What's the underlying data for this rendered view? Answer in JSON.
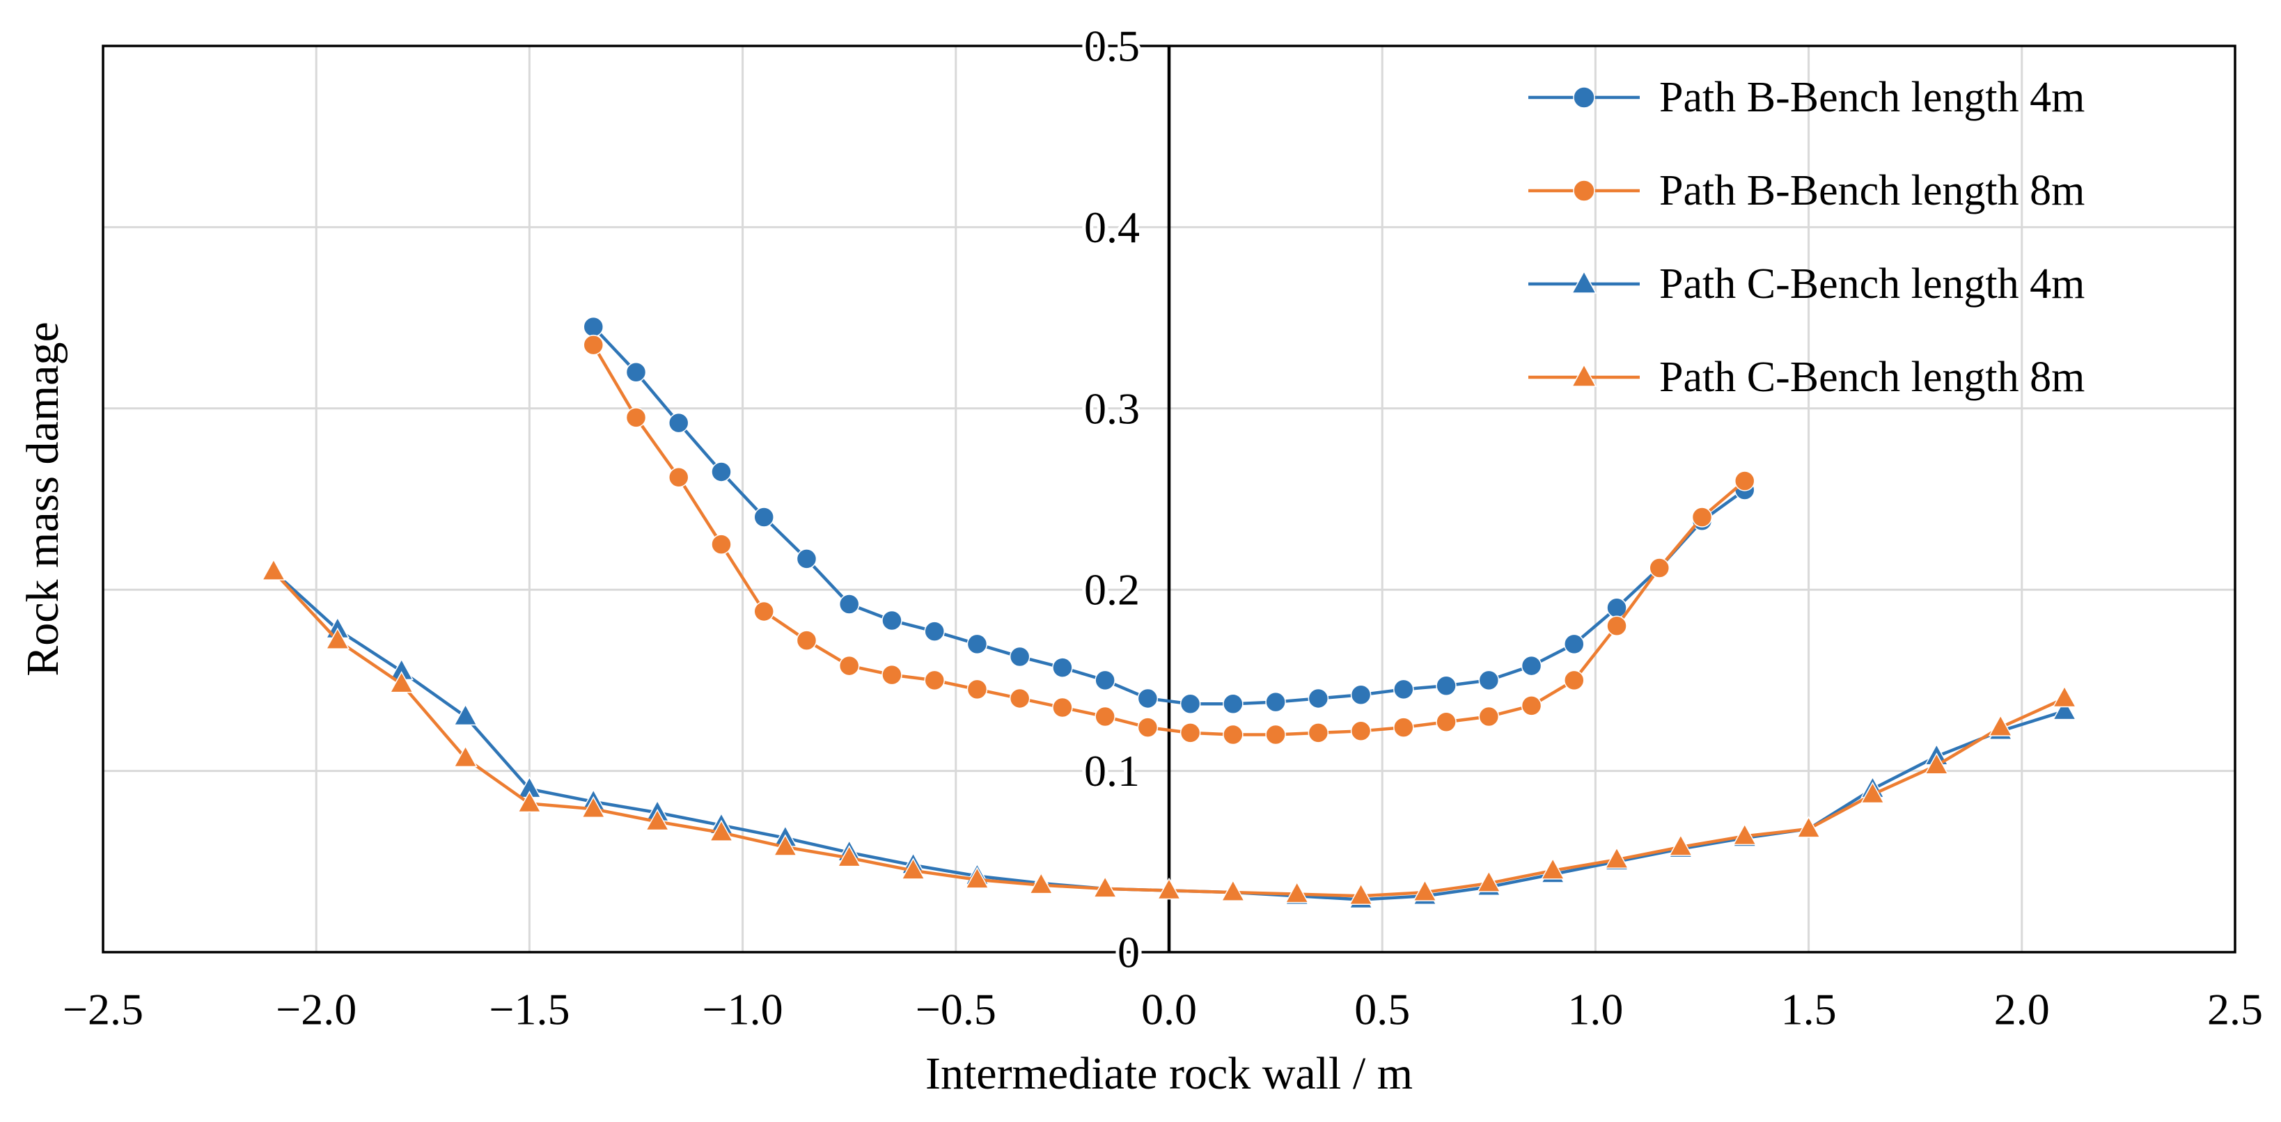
{
  "chart_data": {
    "type": "line",
    "title": "",
    "xlabel": "Intermediate rock wall / m",
    "ylabel": "Rock mass damage",
    "xlim": [
      -2.5,
      2.5
    ],
    "ylim": [
      0,
      0.5
    ],
    "grid": true,
    "legend_position": "top-right-inside",
    "xticks": [
      -2.5,
      -2.0,
      -1.5,
      -1.0,
      -0.5,
      0.0,
      0.5,
      1.0,
      1.5,
      2.0,
      2.5
    ],
    "yticks": [
      0,
      0.1,
      0.2,
      0.3,
      0.4,
      0.5
    ],
    "xtick_labels": [
      "−2.5",
      "−2.0",
      "−1.5",
      "−1.0",
      "−0.5",
      "0.0",
      "0.5",
      "1.0",
      "1.5",
      "2.0",
      "2.5"
    ],
    "ytick_labels": [
      "0",
      "0.1",
      "0.2",
      "0.3",
      "0.4",
      "0.5"
    ],
    "colors": {
      "blue": "#2E75B6",
      "orange": "#ED7D31",
      "grid": "#D9D9D9",
      "axis": "#000000"
    },
    "series": [
      {
        "name": "Path B-Bench length 4m",
        "color": "#2E75B6",
        "marker": "circle",
        "x": [
          -1.35,
          -1.25,
          -1.15,
          -1.05,
          -0.95,
          -0.85,
          -0.75,
          -0.65,
          -0.55,
          -0.45,
          -0.35,
          -0.25,
          -0.15,
          -0.05,
          0.05,
          0.15,
          0.25,
          0.35,
          0.45,
          0.55,
          0.65,
          0.75,
          0.85,
          0.95,
          1.05,
          1.15,
          1.25,
          1.35
        ],
        "y": [
          0.345,
          0.32,
          0.292,
          0.265,
          0.24,
          0.217,
          0.192,
          0.183,
          0.177,
          0.17,
          0.163,
          0.157,
          0.15,
          0.14,
          0.137,
          0.137,
          0.138,
          0.14,
          0.142,
          0.145,
          0.147,
          0.15,
          0.158,
          0.17,
          0.19,
          0.212,
          0.238,
          0.255
        ]
      },
      {
        "name": "Path B-Bench length 8m",
        "color": "#ED7D31",
        "marker": "circle",
        "x": [
          -1.35,
          -1.25,
          -1.15,
          -1.05,
          -0.95,
          -0.85,
          -0.75,
          -0.65,
          -0.55,
          -0.45,
          -0.35,
          -0.25,
          -0.15,
          -0.05,
          0.05,
          0.15,
          0.25,
          0.35,
          0.45,
          0.55,
          0.65,
          0.75,
          0.85,
          0.95,
          1.05,
          1.15,
          1.25,
          1.35
        ],
        "y": [
          0.335,
          0.295,
          0.262,
          0.225,
          0.188,
          0.172,
          0.158,
          0.153,
          0.15,
          0.145,
          0.14,
          0.135,
          0.13,
          0.124,
          0.121,
          0.12,
          0.12,
          0.121,
          0.122,
          0.124,
          0.127,
          0.13,
          0.136,
          0.15,
          0.18,
          0.212,
          0.24,
          0.26
        ]
      },
      {
        "name": "Path C-Bench length 4m",
        "color": "#2E75B6",
        "marker": "triangle",
        "x": [
          -2.1,
          -1.95,
          -1.8,
          -1.65,
          -1.5,
          -1.35,
          -1.2,
          -1.05,
          -0.9,
          -0.75,
          -0.6,
          -0.45,
          -0.3,
          -0.15,
          0.0,
          0.15,
          0.3,
          0.45,
          0.6,
          0.75,
          0.9,
          1.05,
          1.2,
          1.35,
          1.5,
          1.65,
          1.8,
          1.95,
          2.1
        ],
        "y": [
          0.21,
          0.178,
          0.155,
          0.13,
          0.09,
          0.083,
          0.077,
          0.07,
          0.063,
          0.055,
          0.048,
          0.042,
          0.038,
          0.035,
          0.034,
          0.033,
          0.031,
          0.029,
          0.031,
          0.036,
          0.043,
          0.05,
          0.057,
          0.063,
          0.068,
          0.09,
          0.108,
          0.122,
          0.133
        ]
      },
      {
        "name": "Path C-Bench length 8m",
        "color": "#ED7D31",
        "marker": "triangle",
        "x": [
          -2.1,
          -1.95,
          -1.8,
          -1.65,
          -1.5,
          -1.35,
          -1.2,
          -1.05,
          -0.9,
          -0.75,
          -0.6,
          -0.45,
          -0.3,
          -0.15,
          0.0,
          0.15,
          0.3,
          0.45,
          0.6,
          0.75,
          0.9,
          1.05,
          1.2,
          1.35,
          1.5,
          1.65,
          1.8,
          1.95,
          2.1
        ],
        "y": [
          0.21,
          0.172,
          0.148,
          0.107,
          0.082,
          0.079,
          0.072,
          0.066,
          0.058,
          0.052,
          0.045,
          0.04,
          0.037,
          0.035,
          0.034,
          0.033,
          0.032,
          0.031,
          0.033,
          0.038,
          0.045,
          0.051,
          0.058,
          0.064,
          0.068,
          0.087,
          0.103,
          0.124,
          0.14
        ]
      }
    ]
  }
}
